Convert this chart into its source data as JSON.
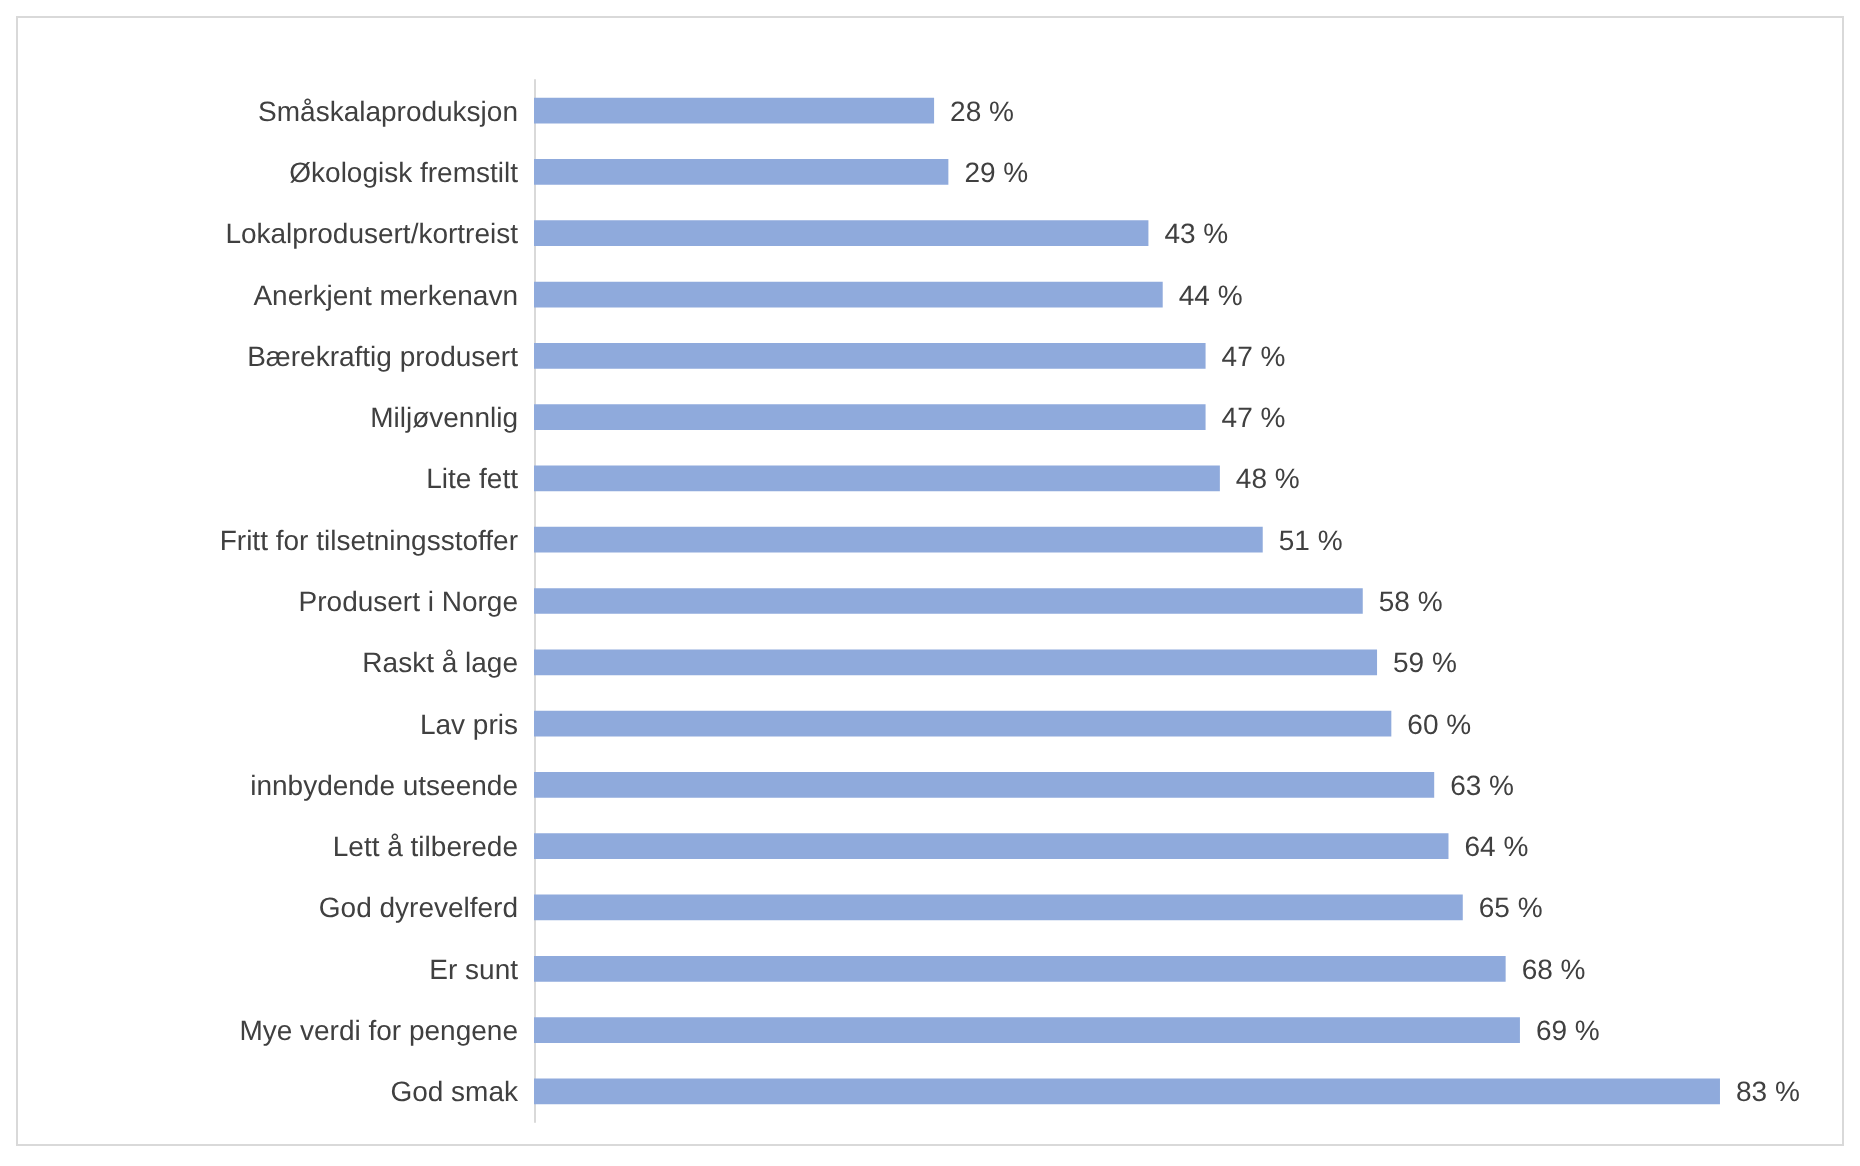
{
  "chart_data": {
    "type": "bar",
    "orientation": "horizontal",
    "categories": [
      "Småskalaproduksjon",
      "Økologisk fremstilt",
      "Lokalprodusert/kortreist",
      "Anerkjent merkenavn",
      "Bærekraftig produsert",
      "Miljøvennlig",
      "Lite fett",
      "Fritt for tilsetningsstoffer",
      "Produsert i Norge",
      "Raskt å lage",
      "Lav pris",
      "innbydende utseende",
      "Lett å tilberede",
      "God dyrevelferd",
      "Er sunt",
      "Mye verdi for pengene",
      "God smak"
    ],
    "values": [
      28,
      29,
      43,
      44,
      47,
      47,
      48,
      51,
      58,
      59,
      60,
      63,
      64,
      65,
      68,
      69,
      83
    ],
    "value_labels": [
      "28 %",
      "29 %",
      "43 %",
      "44 %",
      "47 %",
      "47 %",
      "48 %",
      "51 %",
      "58 %",
      "59 %",
      "60 %",
      "63 %",
      "64 %",
      "65 %",
      "68 %",
      "69 %",
      "83 %"
    ],
    "color": "#8faadc",
    "tick_labels": "y"
  }
}
